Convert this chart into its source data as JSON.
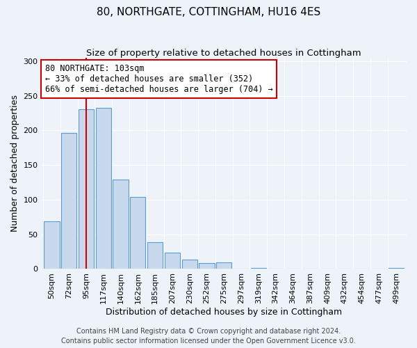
{
  "title": "80, NORTHGATE, COTTINGHAM, HU16 4ES",
  "subtitle": "Size of property relative to detached houses in Cottingham",
  "xlabel": "Distribution of detached houses by size in Cottingham",
  "ylabel": "Number of detached properties",
  "bar_labels": [
    "50sqm",
    "72sqm",
    "95sqm",
    "117sqm",
    "140sqm",
    "162sqm",
    "185sqm",
    "207sqm",
    "230sqm",
    "252sqm",
    "275sqm",
    "297sqm",
    "319sqm",
    "342sqm",
    "364sqm",
    "387sqm",
    "409sqm",
    "432sqm",
    "454sqm",
    "477sqm",
    "499sqm"
  ],
  "bar_values": [
    69,
    196,
    231,
    233,
    129,
    104,
    39,
    24,
    14,
    9,
    10,
    0,
    1,
    0,
    0,
    0,
    0,
    0,
    0,
    0,
    1
  ],
  "bar_color": "#c8d9ed",
  "bar_edge_color": "#5b9bd5",
  "vline_x": 2,
  "vline_color": "#cc0000",
  "annotation_text": "80 NORTHGATE: 103sqm\n← 33% of detached houses are smaller (352)\n66% of semi-detached houses are larger (704) →",
  "annotation_box_color": "#ffffff",
  "annotation_box_edge": "#cc0000",
  "ylim": [
    0,
    305
  ],
  "yticks": [
    0,
    50,
    100,
    150,
    200,
    250,
    300
  ],
  "footer_line1": "Contains HM Land Registry data © Crown copyright and database right 2024.",
  "footer_line2": "Contains public sector information licensed under the Open Government Licence v3.0.",
  "bg_color": "#eef2f9",
  "plot_bg_color": "#eef2f9",
  "title_fontsize": 11,
  "subtitle_fontsize": 9.5,
  "axis_label_fontsize": 9,
  "tick_fontsize": 8,
  "footer_fontsize": 7,
  "annotation_fontsize": 8.5
}
